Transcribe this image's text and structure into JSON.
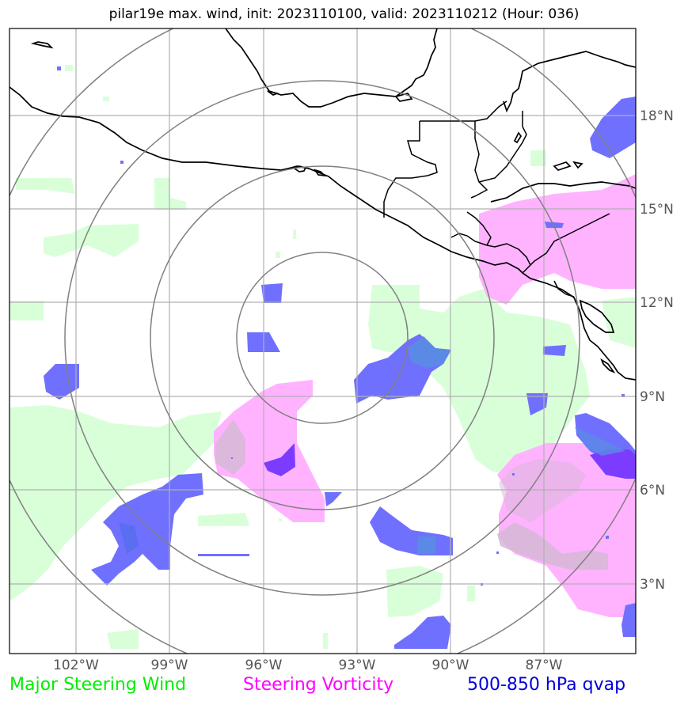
{
  "title": "pilar19e max. wind, init: 2023110100, valid: 2023110212 (Hour: 036)",
  "longitude_labels": [
    "102°W",
    "99°W",
    "96°W",
    "93°W",
    "90°W",
    "87°W"
  ],
  "latitude_labels": [
    "18°N",
    "15°N",
    "12°N",
    "9°N",
    "6°N",
    "3°N"
  ],
  "legend": {
    "major_steering_wind": "Major Steering Wind",
    "steering_vorticity": "Steering Vorticity",
    "qvap": "500-850 hPa qvap"
  },
  "colors": {
    "major_steering_wind": "#00ee00",
    "steering_vorticity": "#ff00ff",
    "qvap": "#0000dd",
    "green_fill": "#d9ffd9",
    "pink_fill": "#ffb3ff",
    "blue_fill": "#7070ff",
    "range_rings": "#808080",
    "gridlines": "#b0b0b0",
    "coastline": "#000000"
  },
  "map": {
    "extent": {
      "lon_min": -104.1,
      "lon_max": -84.0,
      "lat_min": 1.0,
      "lat_max": 20.0
    },
    "storm_center": {
      "lon": -94.4,
      "lat": 10.8
    },
    "range_rings_count": 4
  }
}
